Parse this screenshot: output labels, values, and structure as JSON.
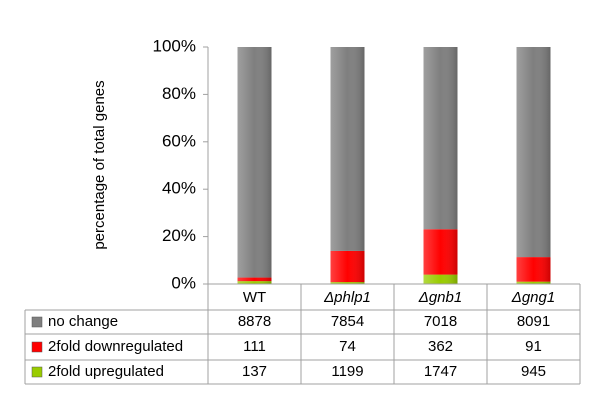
{
  "chart_data": {
    "type": "stacked-percent-bar",
    "ylabel": "percentage of total genes",
    "categories": [
      "WT",
      "Δphlp1",
      "Δgnb1",
      "Δgng1"
    ],
    "series": [
      {
        "name": "no change",
        "color": "#7f7f7f",
        "bar_color": "#7f7f7f",
        "values": [
          8878,
          7854,
          7018,
          8091
        ]
      },
      {
        "name": "2fold downregulated",
        "color": "#ff0000",
        "bar_color": "#99cc00",
        "values": [
          111,
          74,
          362,
          91
        ]
      },
      {
        "name": "2fold upregulated",
        "color": "#99cc00",
        "bar_color": "#ff0000",
        "values": [
          137,
          1199,
          1747,
          945
        ]
      }
    ],
    "ylim": [
      0,
      100
    ],
    "yticks": [
      {
        "value": 0,
        "label": "0%"
      },
      {
        "value": 20,
        "label": "20%"
      },
      {
        "value": 40,
        "label": "40%"
      },
      {
        "value": 60,
        "label": "60%"
      },
      {
        "value": 80,
        "label": "80%"
      },
      {
        "value": 100,
        "label": "100%"
      }
    ]
  }
}
